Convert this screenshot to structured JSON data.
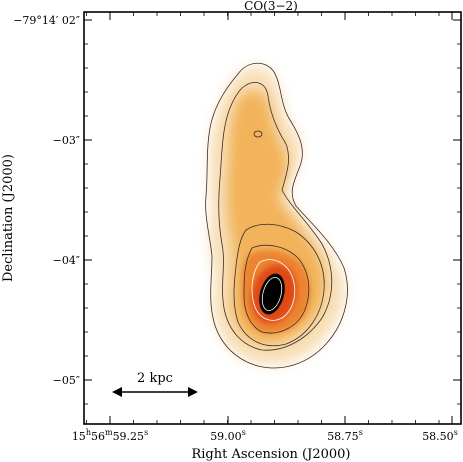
{
  "figure": {
    "title": "CO(3−2)",
    "xlabel": "Right Ascension (J2000)",
    "ylabel": "Declination (J2000)",
    "scale_bar_label": "2 kpc",
    "x_tick_labels": {
      "t1": {
        "h": "15",
        "hs": "h",
        "m": "56",
        "ms": "m",
        "s": "59.25",
        "ss": "s"
      },
      "t2": {
        "s": "59.00",
        "ss": "s"
      },
      "t3": {
        "s": "58.75",
        "ss": "s"
      },
      "t4": {
        "s": "58.50",
        "ss": "s"
      }
    },
    "y_tick_labels": {
      "t1": "−79°14′ 02″",
      "t2": "−03″",
      "t3": "−04″",
      "t4": "−05″"
    },
    "colormap": [
      "#ffffff",
      "#fbe6c4",
      "#f5c77a",
      "#f09a3a",
      "#e8541c",
      "#c9260f",
      "#000000"
    ]
  }
}
